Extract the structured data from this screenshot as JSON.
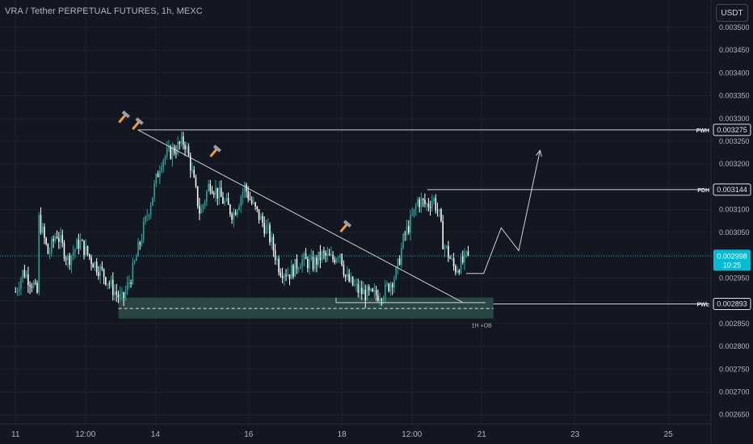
{
  "header": {
    "title": "VRA / Tether PERPETUAL FUTURES, 1h, MEXC",
    "currency": "USDT"
  },
  "colors": {
    "background": "#131722",
    "up": "#26a69a",
    "down": "#ffffff",
    "grid": "#1e222d",
    "current_price": "#00bcd4",
    "zone": "#2e4e4a",
    "annotation": "#cfd2d6"
  },
  "chart_data": {
    "type": "candlestick",
    "title": "VRA / Tether PERPETUAL FUTURES, 1h, MEXC",
    "ylim": [
      0.00263,
      0.00356
    ],
    "y_ticks": [
      "0.003500",
      "0.003450",
      "0.003400",
      "0.003350",
      "0.003300",
      "0.003250",
      "0.003200",
      "0.003150",
      "0.003100",
      "0.003050",
      "0.003000",
      "0.002950",
      "0.002900",
      "0.002850",
      "0.002800",
      "0.002750",
      "0.002700",
      "0.002650"
    ],
    "x_ticks": [
      "11",
      "12:00",
      "14",
      "16",
      "18",
      "12:00",
      "21",
      "23",
      "25"
    ],
    "x_tick_hours": [
      0,
      36,
      72,
      120,
      168,
      204,
      240,
      288,
      336
    ],
    "x_start_hour": -8,
    "x_end_hour": 358,
    "candle_count": 252,
    "price_path": [
      [
        0,
        0.00292
      ],
      [
        4,
        0.002965
      ],
      [
        10,
        0.00293
      ],
      [
        11,
        0.00289
      ],
      [
        12,
        0.00308
      ],
      [
        17,
        0.003
      ],
      [
        21,
        0.00305
      ],
      [
        27,
        0.00299
      ],
      [
        33,
        0.00303
      ],
      [
        39,
        0.00299
      ],
      [
        45,
        0.00296
      ],
      [
        51,
        0.00292
      ],
      [
        55,
        0.0029
      ],
      [
        60,
        0.00296
      ],
      [
        66,
        0.00306
      ],
      [
        71,
        0.00314
      ],
      [
        75,
        0.00321
      ],
      [
        81,
        0.00323
      ],
      [
        87,
        0.00325
      ],
      [
        90,
        0.0032
      ],
      [
        95,
        0.00309
      ],
      [
        100,
        0.00316
      ],
      [
        105,
        0.00313
      ],
      [
        112,
        0.00309
      ],
      [
        118,
        0.00315
      ],
      [
        122,
        0.00311
      ],
      [
        130,
        0.00305
      ],
      [
        136,
        0.00297
      ],
      [
        141,
        0.00296
      ],
      [
        147,
        0.00299
      ],
      [
        153,
        0.00298
      ],
      [
        158,
        0.003
      ],
      [
        163,
        0.00299
      ],
      [
        167,
        0.00301
      ],
      [
        170,
        0.00295
      ],
      [
        177,
        0.00292
      ],
      [
        184,
        0.00291
      ],
      [
        190,
        0.00292
      ],
      [
        196,
        0.00296
      ],
      [
        200,
        0.00304
      ],
      [
        205,
        0.00309
      ],
      [
        207,
        0.00312
      ],
      [
        212,
        0.00311
      ],
      [
        215,
        0.003125
      ],
      [
        218,
        0.00309
      ],
      [
        220,
        0.00303
      ],
      [
        226,
        0.00297
      ],
      [
        229,
        0.00298
      ],
      [
        233,
        0.002998
      ]
    ],
    "last_price": "0.002998",
    "countdown": "10:25",
    "levels": [
      {
        "label": "PWH",
        "value": 0.003275,
        "price_label": "0.003275"
      },
      {
        "label": "PDH",
        "value": 0.003144,
        "price_label": "0.003144"
      },
      {
        "label": "PWL",
        "value": 0.002893,
        "price_label": "0.002893"
      }
    ],
    "order_block": {
      "label": "1H +OB",
      "top": 0.002907,
      "bottom": 0.002861,
      "start_hour": 53,
      "end_hour": 246,
      "mid": 0.002883
    },
    "trendline": {
      "start": [
        63,
        0.003275
      ],
      "end": [
        230,
        0.002897
      ]
    },
    "lower_line": {
      "value": 0.002896,
      "start_hour": 165,
      "end_hour": 242
    },
    "projection": [
      [
        232,
        0.00296
      ],
      [
        241,
        0.00296
      ],
      [
        250,
        0.00306
      ],
      [
        259,
        0.00301
      ],
      [
        270,
        0.00323
      ]
    ],
    "hammer_markers": [
      [
        56,
        0.003305
      ],
      [
        63,
        0.00329
      ],
      [
        103,
        0.00323
      ],
      [
        170,
        0.003065
      ]
    ]
  }
}
